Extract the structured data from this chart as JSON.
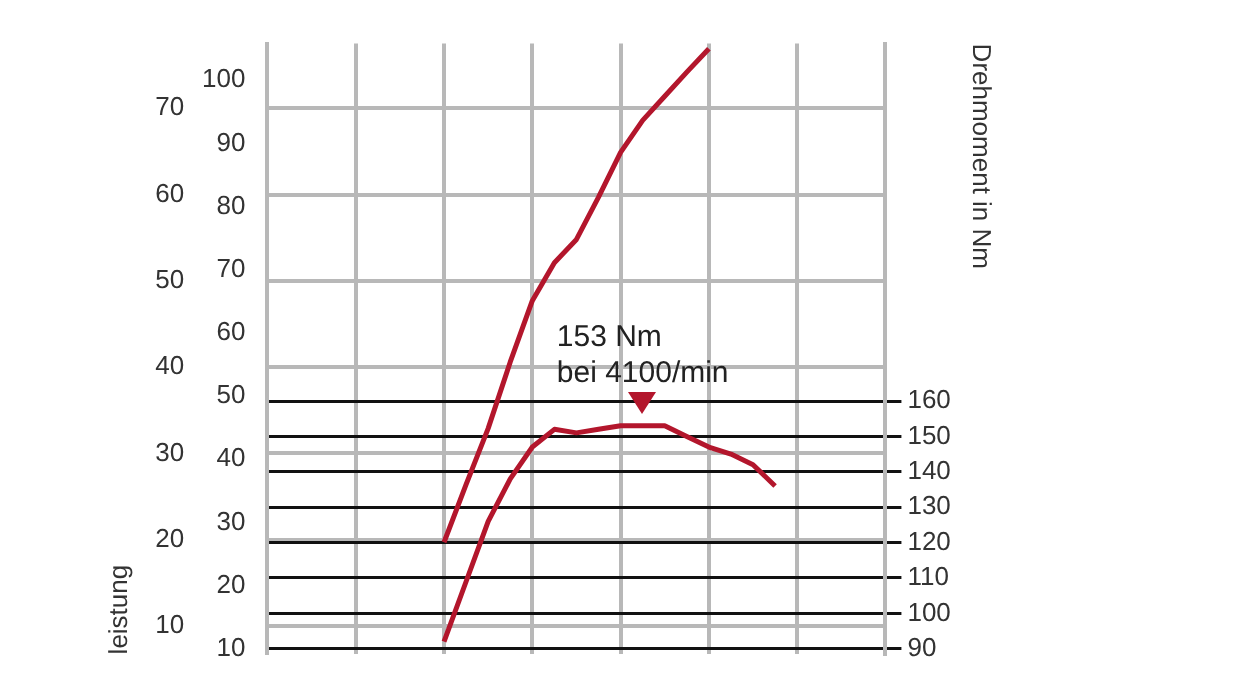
{
  "chart_data": {
    "type": "line",
    "ylabel": "leistung",
    "y2label": "Drehmoment in Nm",
    "categories": [
      null,
      null,
      null,
      null,
      null,
      null,
      null,
      null,
      null,
      null,
      null,
      null,
      null,
      null,
      null,
      null,
      null,
      null,
      null,
      null,
      null,
      null,
      null,
      null,
      null,
      null,
      null,
      null,
      null
    ],
    "series": [
      {
        "color": "#b3162c",
        "values": [
          null,
          null,
          null,
          null,
          null,
          null,
          null,
          null,
          19.7,
          26.4,
          32.9,
          40.6,
          47.7,
          52.1,
          54.8,
          59.7,
          64.9,
          68.6,
          71.4,
          74.2,
          76.9,
          null,
          null,
          null,
          null,
          null,
          null,
          null,
          null
        ]
      },
      {
        "color": "#b3162c",
        "axis": "y2",
        "values": [
          null,
          null,
          null,
          null,
          null,
          null,
          null,
          null,
          92,
          109,
          126,
          138,
          147,
          152,
          151,
          152,
          153,
          153,
          153,
          150,
          147,
          145,
          142,
          136,
          null,
          null,
          null,
          null,
          null
        ]
      }
    ],
    "ylim": [
      6.7,
      77.5
    ],
    "yticks": [
      10,
      20,
      30,
      40,
      50,
      60,
      70
    ],
    "y3lim": [
      9.1,
      105.8
    ],
    "y3ticks": [
      10,
      20,
      30,
      40,
      50,
      60,
      70,
      80,
      90,
      100
    ],
    "y2lim": [
      88.4,
      261
    ],
    "y2ticks": [
      90,
      100,
      110,
      120,
      130,
      140,
      150,
      160
    ],
    "annotations": [
      "153 Nm bei 4100/min"
    ],
    "grid": true,
    "marker": "none",
    "line_style": "solid",
    "legend": false
  }
}
